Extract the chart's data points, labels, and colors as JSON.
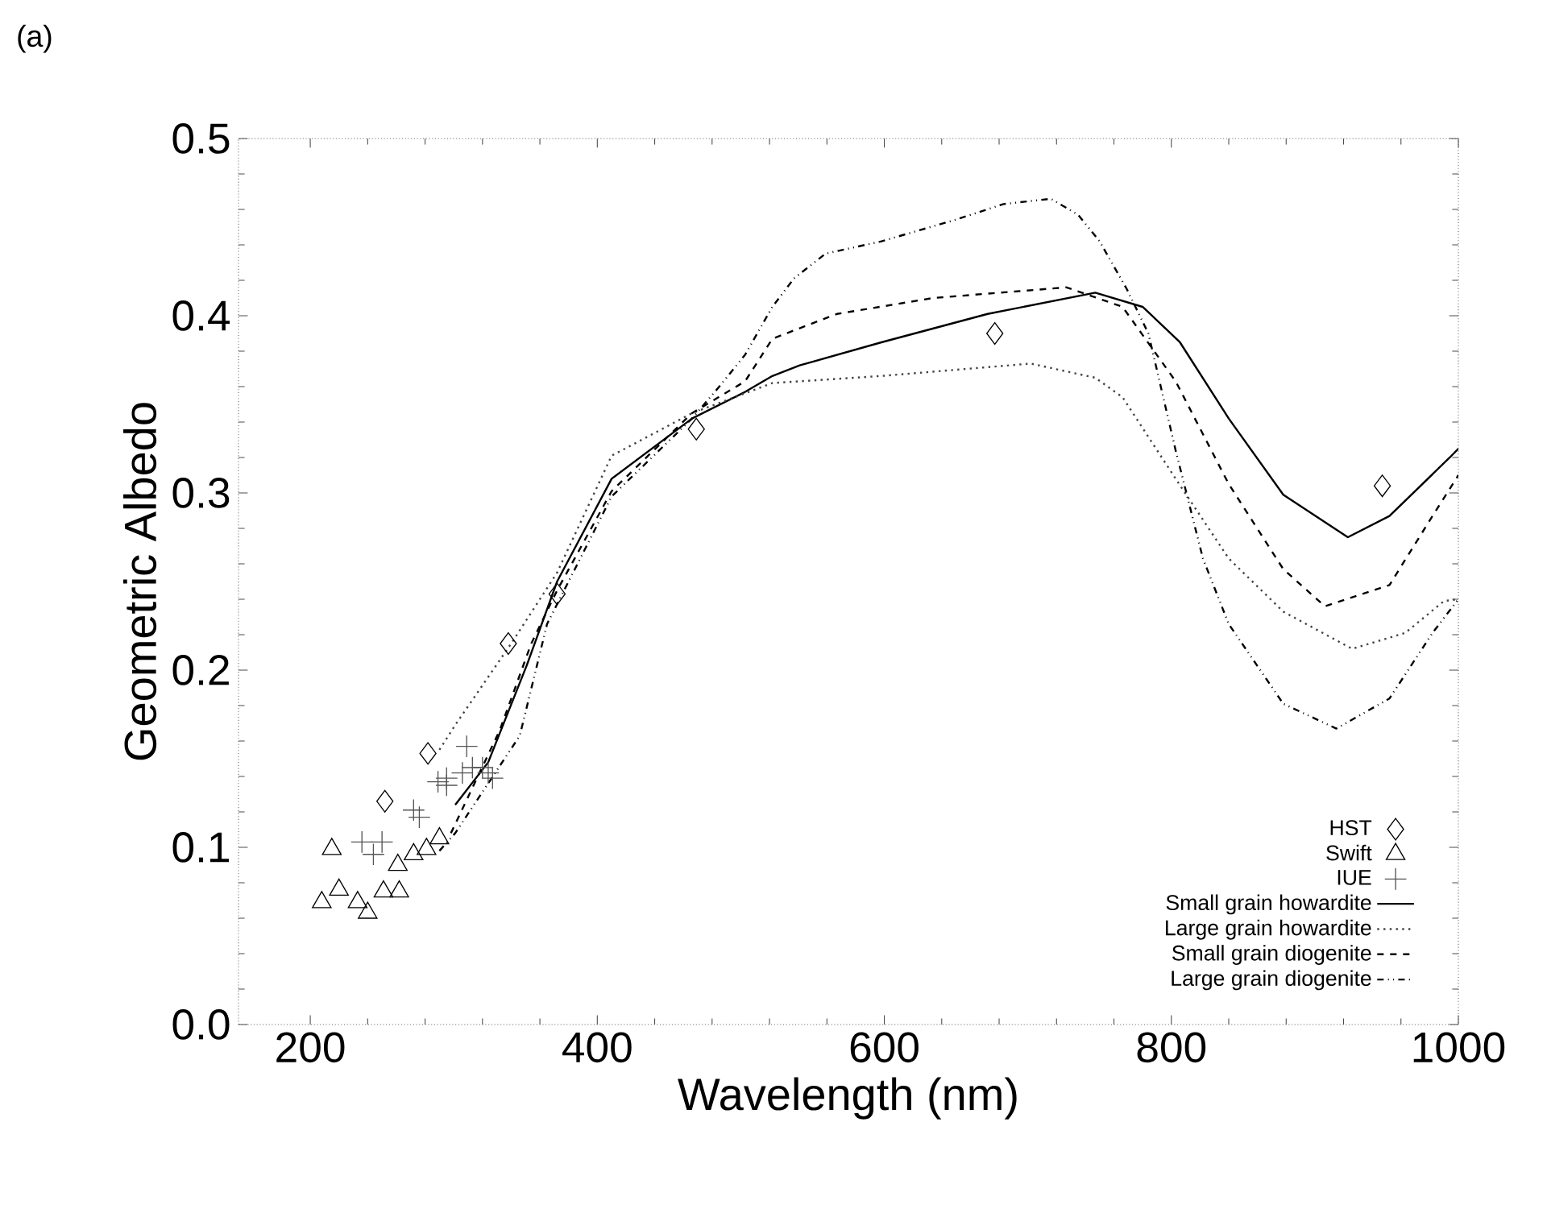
{
  "chart_data": {
    "type": "line",
    "xlabel": "Wavelength (nm)",
    "ylabel": "Geometric Albedo",
    "annotations": [
      "(a)"
    ],
    "xlim": [
      150,
      1000
    ],
    "xticks": [
      200,
      400,
      600,
      800,
      1000
    ],
    "ylim": [
      0,
      0.5
    ],
    "yticks": [
      {
        "value": 0,
        "label": "0.0"
      },
      0.1,
      0.2,
      0.3,
      0.4,
      0.5
    ],
    "legend": "bottom right",
    "series": [
      {
        "name": "HST",
        "type": "scatter",
        "marker": "diamond",
        "color": "#000000",
        "x": [
          252,
          282,
          338,
          372,
          469,
          677,
          947
        ],
        "values": [
          0.126,
          0.153,
          0.215,
          0.243,
          0.336,
          0.39,
          0.304
        ]
      },
      {
        "name": "Swift",
        "type": "scatter",
        "marker": "triangle",
        "color": "#000000",
        "x": [
          215,
          208,
          220,
          233,
          240,
          251,
          262,
          261,
          272,
          281,
          290
        ],
        "values": [
          0.099,
          0.069,
          0.076,
          0.069,
          0.063,
          0.075,
          0.075,
          0.09,
          0.096,
          0.099,
          0.105
        ]
      },
      {
        "name": "IUE",
        "type": "scatter",
        "marker": "cross",
        "color": "#555555",
        "x": [
          236,
          244,
          250,
          272,
          276,
          289,
          295,
          295,
          306,
          309,
          313,
          320,
          324,
          327
        ],
        "values": [
          0.103,
          0.096,
          0.103,
          0.121,
          0.117,
          0.137,
          0.139,
          0.135,
          0.142,
          0.157,
          0.145,
          0.145,
          0.142,
          0.139
        ]
      },
      {
        "name": "Small grain howardite",
        "line_style": "solid",
        "color": "#000000",
        "x": [
          301,
          324,
          351,
          372,
          410,
          466,
          503,
          522,
          541,
          598,
          672,
          747,
          780,
          806,
          840,
          878,
          923,
          952,
          994,
          1000
        ],
        "values": [
          0.124,
          0.148,
          0.203,
          0.25,
          0.308,
          0.342,
          0.357,
          0.366,
          0.372,
          0.385,
          0.401,
          0.413,
          0.405,
          0.385,
          0.342,
          0.299,
          0.275,
          0.287,
          0.32,
          0.325
        ]
      },
      {
        "name": "Large grain howardite",
        "line_style": "dotted",
        "color": "#444444",
        "x": [
          290,
          301,
          340,
          372,
          410,
          466,
          522,
          598,
          702,
          747,
          766,
          803,
          840,
          878,
          926,
          963,
          990,
          1000
        ],
        "values": [
          0.155,
          0.169,
          0.215,
          0.255,
          0.321,
          0.345,
          0.362,
          0.366,
          0.373,
          0.365,
          0.354,
          0.308,
          0.263,
          0.233,
          0.212,
          0.221,
          0.239,
          0.24
        ]
      },
      {
        "name": "Small grain diogenite",
        "line_style": "dashed",
        "color": "#000000",
        "x": [
          298,
          332,
          354,
          372,
          410,
          466,
          503,
          522,
          567,
          634,
          727,
          766,
          803,
          840,
          878,
          907,
          952,
          982,
          1000
        ],
        "values": [
          0.108,
          0.166,
          0.215,
          0.245,
          0.301,
          0.345,
          0.363,
          0.387,
          0.401,
          0.41,
          0.416,
          0.405,
          0.363,
          0.305,
          0.257,
          0.236,
          0.248,
          0.287,
          0.31
        ]
      },
      {
        "name": "Large grain diogenite",
        "line_style": "dashdotdotted",
        "color": "#000000",
        "x": [
          290,
          301,
          346,
          365,
          410,
          466,
          485,
          503,
          522,
          537,
          559,
          598,
          649,
          683,
          716,
          735,
          750,
          769,
          784,
          803,
          822,
          840,
          878,
          915,
          952,
          982,
          1000
        ],
        "values": [
          0.098,
          0.108,
          0.163,
          0.226,
          0.298,
          0.342,
          0.36,
          0.378,
          0.405,
          0.421,
          0.435,
          0.442,
          0.454,
          0.463,
          0.466,
          0.457,
          0.442,
          0.415,
          0.39,
          0.324,
          0.263,
          0.226,
          0.181,
          0.167,
          0.184,
          0.221,
          0.24
        ]
      }
    ]
  }
}
